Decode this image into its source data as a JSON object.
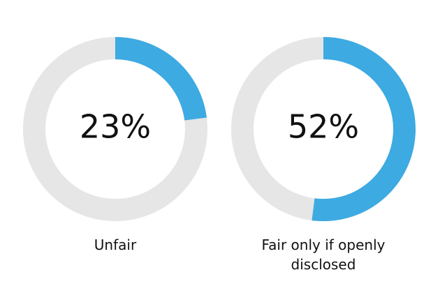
{
  "chart_data": [
    {
      "type": "donut",
      "categories": [
        "Unfair"
      ],
      "values": [
        23
      ],
      "value_labels": [
        "23%"
      ],
      "color": "#3daae2",
      "track_color": "#e6e6e6"
    },
    {
      "type": "donut",
      "categories": [
        "Fair only if openly disclosed"
      ],
      "values": [
        52
      ],
      "value_labels": [
        "52%"
      ],
      "color": "#3daae2",
      "track_color": "#e6e6e6"
    }
  ]
}
